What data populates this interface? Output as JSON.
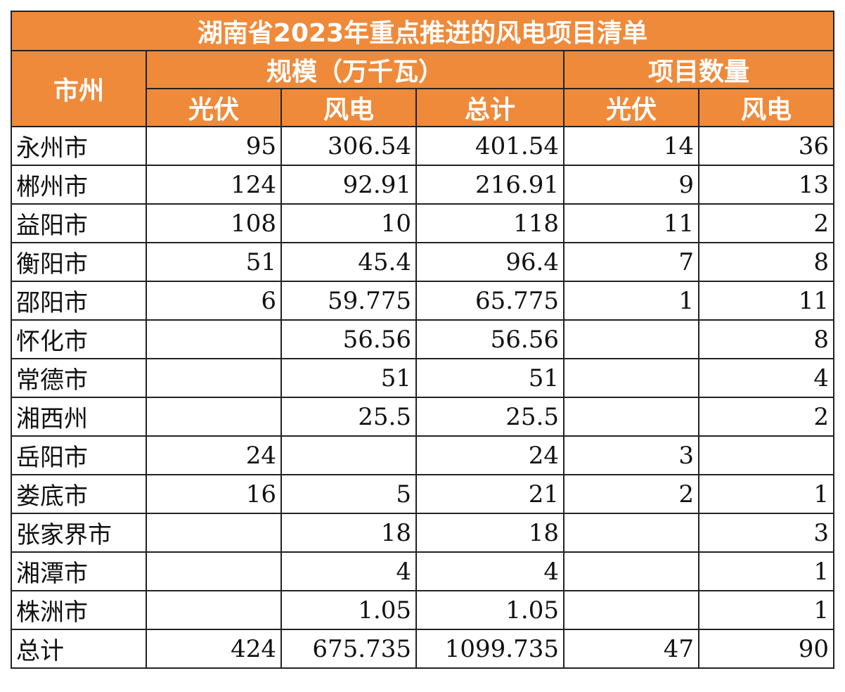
{
  "title": "湖南省2023年重点推进的风电项目清单",
  "headers": {
    "city": "市州",
    "scale_group": "规模（万千瓦）",
    "count_group": "项目数量",
    "scale_pv": "光伏",
    "scale_wind": "风电",
    "scale_total": "总计",
    "count_pv": "光伏",
    "count_wind": "风电"
  },
  "rows": [
    {
      "city": "永州市",
      "pv": "95",
      "wind": "306.54",
      "total": "401.54",
      "pv_n": "14",
      "wind_n": "36"
    },
    {
      "city": "郴州市",
      "pv": "124",
      "wind": "92.91",
      "total": "216.91",
      "pv_n": "9",
      "wind_n": "13"
    },
    {
      "city": "益阳市",
      "pv": "108",
      "wind": "10",
      "total": "118",
      "pv_n": "11",
      "wind_n": "2"
    },
    {
      "city": "衡阳市",
      "pv": "51",
      "wind": "45.4",
      "total": "96.4",
      "pv_n": "7",
      "wind_n": "8"
    },
    {
      "city": "邵阳市",
      "pv": "6",
      "wind": "59.775",
      "total": "65.775",
      "pv_n": "1",
      "wind_n": "11"
    },
    {
      "city": "怀化市",
      "pv": "",
      "wind": "56.56",
      "total": "56.56",
      "pv_n": "",
      "wind_n": "8"
    },
    {
      "city": "常德市",
      "pv": "",
      "wind": "51",
      "total": "51",
      "pv_n": "",
      "wind_n": "4"
    },
    {
      "city": "湘西州",
      "pv": "",
      "wind": "25.5",
      "total": "25.5",
      "pv_n": "",
      "wind_n": "2"
    },
    {
      "city": "岳阳市",
      "pv": "24",
      "wind": "",
      "total": "24",
      "pv_n": "3",
      "wind_n": ""
    },
    {
      "city": "娄底市",
      "pv": "16",
      "wind": "5",
      "total": "21",
      "pv_n": "2",
      "wind_n": "1"
    },
    {
      "city": "张家界市",
      "pv": "",
      "wind": "18",
      "total": "18",
      "pv_n": "",
      "wind_n": "3"
    },
    {
      "city": "湘潭市",
      "pv": "",
      "wind": "4",
      "total": "4",
      "pv_n": "",
      "wind_n": "1"
    },
    {
      "city": "株洲市",
      "pv": "",
      "wind": "1.05",
      "total": "1.05",
      "pv_n": "",
      "wind_n": "1"
    },
    {
      "city": "总计",
      "pv": "424",
      "wind": "675.735",
      "total": "1099.735",
      "pv_n": "47",
      "wind_n": "90"
    }
  ],
  "colors": {
    "header_bg": "#ef8a3a",
    "header_text": "#ffffff",
    "border": "#222222"
  }
}
